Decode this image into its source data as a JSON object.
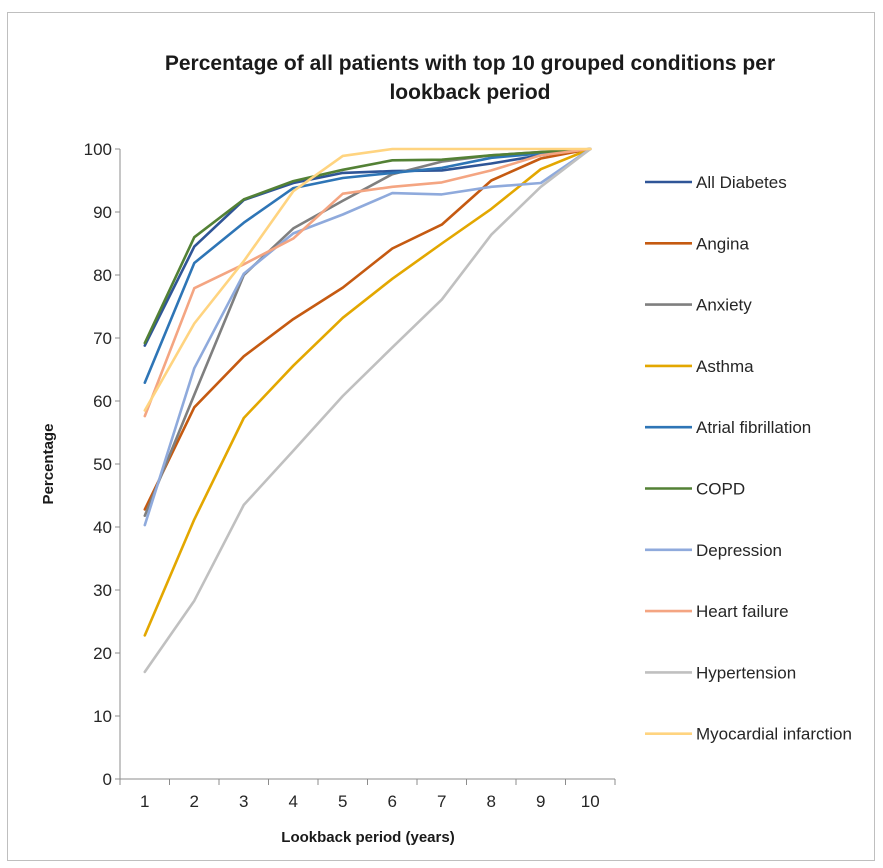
{
  "chart_data": {
    "type": "line",
    "title_line1": "Percentage of all patients with top 10 grouped conditions per",
    "title_line2": "lookback period",
    "xlabel": "Lookback period (years)",
    "ylabel": "Percentage",
    "x": [
      1,
      2,
      3,
      4,
      5,
      6,
      7,
      8,
      9,
      10
    ],
    "ylim": [
      0,
      100
    ],
    "yticks": [
      0,
      10,
      20,
      30,
      40,
      50,
      60,
      70,
      80,
      90,
      100
    ],
    "grid": false,
    "legend_position": "right",
    "series": [
      {
        "name": "All Diabetes",
        "color": "#2f5597",
        "values": [
          68.8,
          84.5,
          91.9,
          94.6,
          96.2,
          96.5,
          96.6,
          97.7,
          99.0,
          100
        ]
      },
      {
        "name": "Angina",
        "color": "#c55a11",
        "values": [
          42.8,
          59.0,
          67.1,
          73.0,
          78.0,
          84.2,
          88.0,
          95.0,
          98.5,
          100
        ]
      },
      {
        "name": "Anxiety",
        "color": "#7f7f7f",
        "values": [
          41.8,
          61.0,
          80.0,
          87.4,
          91.8,
          96.0,
          98.0,
          99.0,
          99.5,
          100
        ]
      },
      {
        "name": "Asthma",
        "color": "#e3a700",
        "values": [
          22.8,
          41.2,
          57.3,
          65.6,
          73.2,
          79.4,
          85.0,
          90.5,
          96.8,
          100
        ]
      },
      {
        "name": "Atrial fibrillation",
        "color": "#2e75b6",
        "values": [
          62.9,
          81.9,
          88.3,
          93.8,
          95.4,
          96.2,
          97.0,
          98.6,
          99.3,
          100
        ]
      },
      {
        "name": "COPD",
        "color": "#538135",
        "values": [
          69.2,
          86.0,
          92.0,
          94.9,
          96.7,
          98.2,
          98.3,
          99.0,
          99.5,
          100
        ]
      },
      {
        "name": "Depression",
        "color": "#8faadc",
        "values": [
          40.3,
          65.2,
          80.2,
          86.6,
          89.6,
          93.0,
          92.8,
          94.0,
          94.6,
          100
        ]
      },
      {
        "name": "Heart failure",
        "color": "#f4a582",
        "values": [
          57.6,
          77.9,
          81.7,
          85.8,
          92.9,
          94.0,
          94.7,
          96.6,
          99.0,
          100
        ]
      },
      {
        "name": "Hypertension",
        "color": "#c0c0c0",
        "values": [
          17.0,
          28.3,
          43.5,
          52.1,
          60.8,
          68.5,
          76.1,
          86.4,
          94.0,
          100
        ]
      },
      {
        "name": "Myocardial infarction",
        "color": "#ffd480",
        "values": [
          58.5,
          72.3,
          82.2,
          93.3,
          98.9,
          100,
          100,
          100,
          100,
          100
        ]
      }
    ]
  }
}
